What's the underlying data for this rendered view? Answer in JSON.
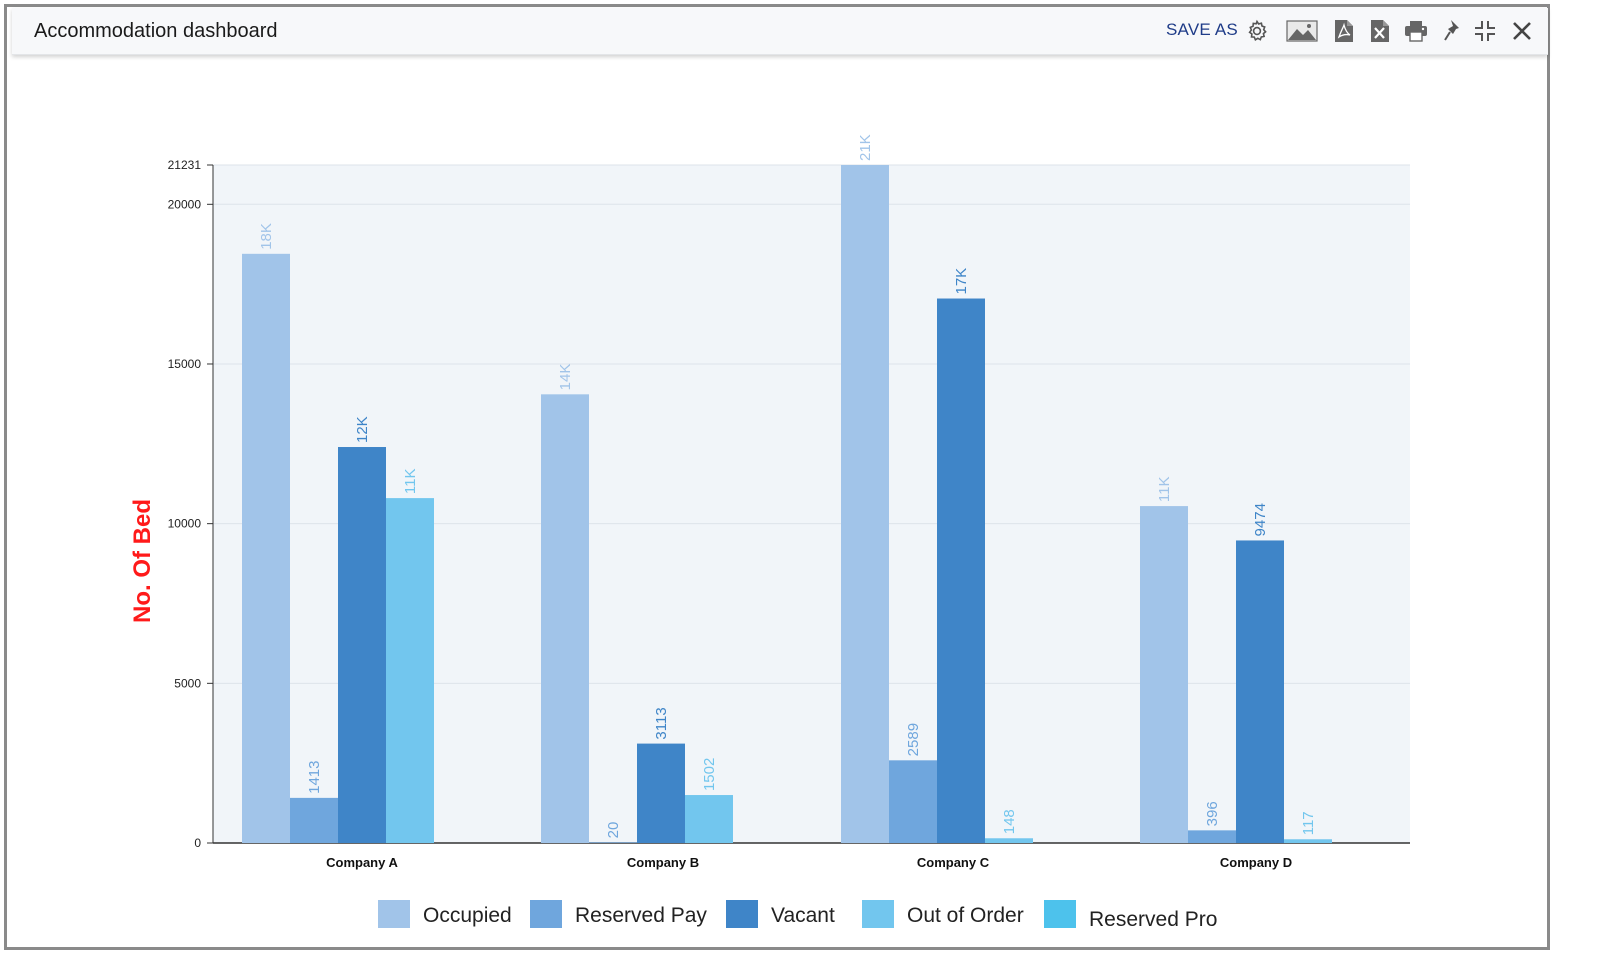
{
  "window": {
    "title": "Accommodation dashboard"
  },
  "toolbar": {
    "save_as_label": "SAVE AS",
    "icons": [
      "gear-icon",
      "image-icon",
      "pdf-icon",
      "excel-icon",
      "print-icon",
      "pin-icon",
      "collapse-icon",
      "close-icon"
    ]
  },
  "chart_data": {
    "type": "bar",
    "title": "",
    "xlabel": "",
    "ylabel": "No. Of Bed",
    "ylim": [
      0,
      21231
    ],
    "yticks": [
      0,
      5000,
      10000,
      15000,
      20000,
      21231
    ],
    "grid": true,
    "legend": "bottom",
    "categories": [
      "Company A",
      "Company B",
      "Company C",
      "Company D"
    ],
    "series": [
      {
        "name": "Occupied",
        "color": "#a1c4e9",
        "values": [
          18450,
          14050,
          21231,
          10550
        ],
        "labels": [
          "18K",
          "14K",
          "21K",
          "11K"
        ]
      },
      {
        "name": "Reserved Pay",
        "color": "#6fa6dd",
        "values": [
          1413,
          20,
          2589,
          396
        ],
        "labels": [
          "1413",
          "20",
          "2589",
          "396"
        ]
      },
      {
        "name": "Vacant",
        "color": "#3f85c8",
        "values": [
          12400,
          3113,
          17050,
          9474
        ],
        "labels": [
          "12K",
          "3113",
          "17K",
          "9474"
        ]
      },
      {
        "name": "Out of Order",
        "color": "#72c6ee",
        "values": [
          10800,
          1502,
          148,
          117
        ],
        "labels": [
          "11K",
          "1502",
          "148",
          "117"
        ]
      },
      {
        "name": "Reserved Pro",
        "color": "#4dc2ec",
        "values": [
          0,
          0,
          0,
          0
        ],
        "labels": [
          "",
          "",
          "",
          ""
        ]
      }
    ]
  }
}
